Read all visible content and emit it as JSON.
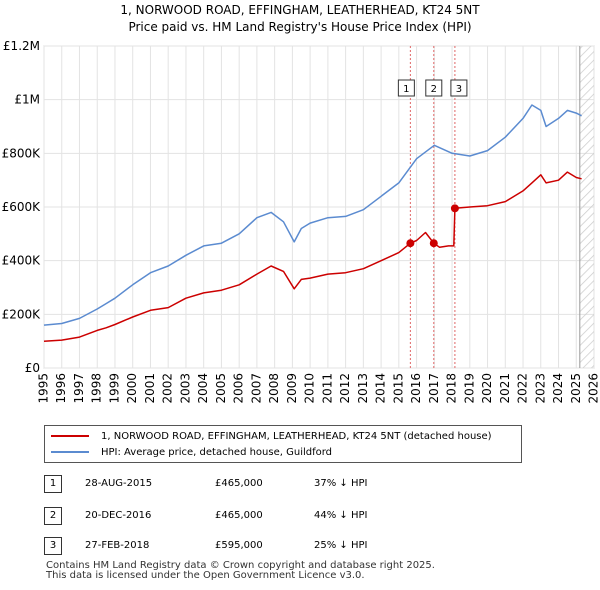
{
  "title": "1, NORWOOD ROAD, EFFINGHAM, LEATHERHEAD, KT24 5NT",
  "subtitle": "Price paid vs. HM Land Registry's House Price Index (HPI)",
  "chart_data": {
    "type": "line",
    "xlim": [
      1995,
      2026
    ],
    "ylim": [
      0,
      1200000
    ],
    "x_ticks": [
      "1995",
      "1996",
      "1997",
      "1998",
      "1999",
      "2000",
      "2001",
      "2002",
      "2003",
      "2004",
      "2005",
      "2006",
      "2007",
      "2008",
      "2009",
      "2010",
      "2011",
      "2012",
      "2013",
      "2014",
      "2015",
      "2016",
      "2017",
      "2018",
      "2019",
      "2020",
      "2021",
      "2022",
      "2023",
      "2024",
      "2025",
      "2026"
    ],
    "y_ticks": [
      {
        "value": 0,
        "label": "£0"
      },
      {
        "value": 200000,
        "label": "£200K"
      },
      {
        "value": 400000,
        "label": "£400K"
      },
      {
        "value": 600000,
        "label": "£600K"
      },
      {
        "value": 800000,
        "label": "£800K"
      },
      {
        "value": 1000000,
        "label": "£1M"
      },
      {
        "value": 1200000,
        "label": "£1.2M"
      }
    ],
    "grid": true,
    "series": [
      {
        "name": "1, NORWOOD ROAD, EFFINGHAM, LEATHERHEAD, KT24 5NT (detached house)",
        "color": "#cc0000",
        "x": [
          1995,
          1996,
          1997,
          1998,
          1998.5,
          1999,
          2000,
          2001,
          2002,
          2003,
          2004,
          2005,
          2006,
          2007,
          2007.8,
          2008.5,
          2009.1,
          2009.5,
          2010,
          2011,
          2012,
          2013,
          2014,
          2015,
          2015.65,
          2016,
          2016.5,
          2016.97,
          2017.3,
          2017.8,
          2018.1,
          2018.16,
          2019,
          2020,
          2021,
          2022,
          2022.5,
          2023,
          2023.3,
          2024,
          2024.5,
          2025,
          2025.3
        ],
        "values": [
          100000,
          104000,
          115000,
          140000,
          150000,
          162000,
          190000,
          215000,
          225000,
          260000,
          280000,
          290000,
          310000,
          350000,
          380000,
          360000,
          295000,
          330000,
          335000,
          350000,
          355000,
          370000,
          400000,
          430000,
          465000,
          475000,
          505000,
          465000,
          450000,
          455000,
          455000,
          595000,
          600000,
          605000,
          620000,
          660000,
          690000,
          720000,
          690000,
          700000,
          730000,
          710000,
          705000
        ]
      },
      {
        "name": "HPI: Average price, detached house, Guildford",
        "color": "#5b8bd0",
        "x": [
          1995,
          1996,
          1997,
          1998,
          1998.5,
          1999,
          2000,
          2001,
          2002,
          2003,
          2004,
          2005,
          2006,
          2007,
          2007.8,
          2008.5,
          2009.1,
          2009.5,
          2010,
          2011,
          2012,
          2013,
          2014,
          2015,
          2016,
          2017,
          2018,
          2019,
          2020,
          2021,
          2022,
          2022.5,
          2023,
          2023.3,
          2024,
          2024.5,
          2025,
          2025.3
        ],
        "values": [
          160000,
          166000,
          185000,
          220000,
          240000,
          260000,
          310000,
          355000,
          380000,
          420000,
          455000,
          465000,
          500000,
          560000,
          580000,
          545000,
          470000,
          520000,
          540000,
          560000,
          565000,
          590000,
          640000,
          690000,
          780000,
          830000,
          800000,
          790000,
          810000,
          860000,
          930000,
          980000,
          960000,
          900000,
          930000,
          960000,
          950000,
          940000
        ]
      }
    ],
    "sales": [
      {
        "id": "1",
        "x": 2015.65,
        "value": 465000
      },
      {
        "id": "2",
        "x": 2016.97,
        "value": 465000
      },
      {
        "id": "3",
        "x": 2018.16,
        "value": 595000
      }
    ]
  },
  "legend": {
    "property_label": "1, NORWOOD ROAD, EFFINGHAM, LEATHERHEAD, KT24 5NT (detached house)",
    "hpi_label": "HPI: Average price, detached house, Guildford",
    "property_color": "#cc0000",
    "hpi_color": "#5b8bd0"
  },
  "transactions": [
    {
      "id": "1",
      "date": "28-AUG-2015",
      "price": "£465,000",
      "hpi": "37% ↓ HPI"
    },
    {
      "id": "2",
      "date": "20-DEC-2016",
      "price": "£465,000",
      "hpi": "44% ↓ HPI"
    },
    {
      "id": "3",
      "date": "27-FEB-2018",
      "price": "£595,000",
      "hpi": "25% ↓ HPI"
    }
  ],
  "footer": {
    "line1": "Contains HM Land Registry data © Crown copyright and database right 2025.",
    "line2": "This data is licensed under the Open Government Licence v3.0."
  }
}
